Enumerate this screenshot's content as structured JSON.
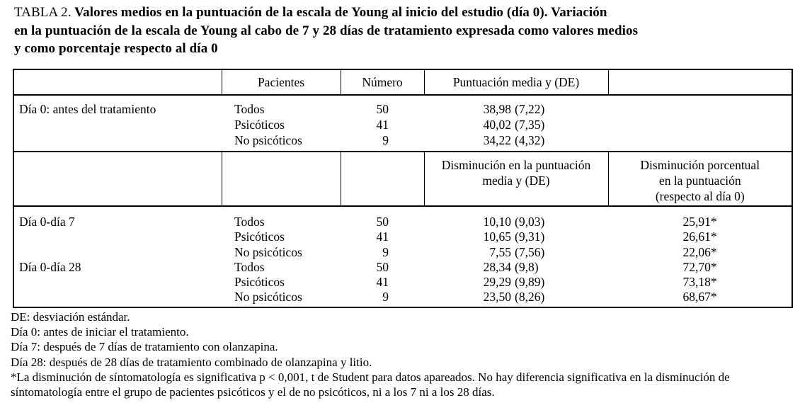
{
  "title": {
    "label": "TABLA 2.",
    "line1": "Valores medios en la puntuación de la escala de Young al inicio del estudio (día 0). Variación",
    "line2": "en la puntuación de la escala de Young al cabo de 7 y 28 días de tratamiento expresada como valores medios",
    "line3": "y como porcentaje respecto al día 0"
  },
  "table": {
    "header1": {
      "patients": "Pacientes",
      "number": "Número",
      "mean_score": "Puntuación media y (DE)"
    },
    "header2": {
      "decrease_line1": "Disminución en la puntuación",
      "decrease_line2": "media y (DE)",
      "percent_line1": "Disminución porcentual",
      "percent_line2": "en la puntuación",
      "percent_line3": "(respecto al día 0)"
    },
    "section_day0": {
      "row_label": "Día 0: antes del tratamiento",
      "rows": [
        {
          "group": "Todos",
          "n": "50",
          "value": "38,98",
          "de": "(7,22)"
        },
        {
          "group": "Psicóticos",
          "n": "41",
          "value": "40,02",
          "de": "(7,35)"
        },
        {
          "group": "No psicóticos",
          "n": "9",
          "value": "34,22",
          "de": "(4,32)"
        }
      ]
    },
    "section_change": {
      "rows": [
        {
          "label": "Día 0-día 7",
          "group": "Todos",
          "n": "50",
          "value": "10,10",
          "de": "(9,03)",
          "pct": "25,91*"
        },
        {
          "label": "",
          "group": "Psicóticos",
          "n": "41",
          "value": "10,65",
          "de": "(9,31)",
          "pct": "26,61*"
        },
        {
          "label": "",
          "group": "No psicóticos",
          "n": "9",
          "value": "7,55",
          "de": "(7,56)",
          "pct": "22,06*"
        },
        {
          "label": "Día 0-día 28",
          "group": "Todos",
          "n": "50",
          "value": "28,34",
          "de": "(9,8)",
          "pct": "72,70*"
        },
        {
          "label": "",
          "group": "Psicóticos",
          "n": "41",
          "value": "29,29",
          "de": "(9,89)",
          "pct": "73,18*"
        },
        {
          "label": "",
          "group": "No psicóticos",
          "n": "9",
          "value": "23,50",
          "de": "(8,26)",
          "pct": "68,67*"
        }
      ]
    }
  },
  "footnotes": {
    "lines": [
      "DE: desviación estándar.",
      "Día 0: antes de iniciar el tratamiento.",
      "Día 7: después de 7 días de tratamiento con olanzapina.",
      "Día 28: después de 28 días de tratamiento combinado de olanzapina y litio.",
      "*La disminución de síntomatología es significativa p < 0,001, t de Student para datos apareados. No hay diferencia significativa en la disminución de",
      "síntomatología entre el grupo de pacientes psicóticos y el de no psicóticos, ni a los 7 ni a los 28 días."
    ]
  }
}
